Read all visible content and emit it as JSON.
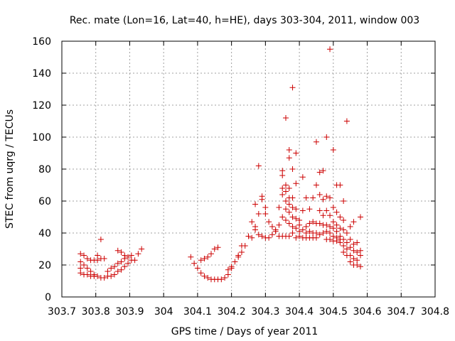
{
  "chart_data": {
    "type": "scatter",
    "title": "Rec. mate (Lon=16, Lat=40, h=HE), days 303-304, 2011, window 003",
    "xlabel": "GPS time / Days of year 2011",
    "ylabel": "STEC from uqrg / TECUs",
    "xlim": [
      303.7,
      304.8
    ],
    "ylim": [
      0,
      160
    ],
    "xticks": [
      "303.7",
      "303.8",
      "303.9",
      "304",
      "304.1",
      "304.2",
      "304.3",
      "304.4",
      "304.5",
      "304.6",
      "304.7",
      "304.8"
    ],
    "yticks": [
      "0",
      "20",
      "40",
      "60",
      "80",
      "100",
      "120",
      "140",
      "160"
    ],
    "grid": true,
    "marker": "+",
    "color": "#cc0000",
    "points": [
      [
        303.755,
        27
      ],
      [
        303.755,
        22
      ],
      [
        303.755,
        18
      ],
      [
        303.755,
        15
      ],
      [
        303.765,
        26
      ],
      [
        303.765,
        20
      ],
      [
        303.765,
        14
      ],
      [
        303.775,
        24
      ],
      [
        303.775,
        18
      ],
      [
        303.775,
        14
      ],
      [
        303.785,
        23
      ],
      [
        303.785,
        16
      ],
      [
        303.785,
        13
      ],
      [
        303.795,
        23
      ],
      [
        303.795,
        14
      ],
      [
        303.795,
        13
      ],
      [
        303.805,
        26
      ],
      [
        303.805,
        23
      ],
      [
        303.805,
        13
      ],
      [
        303.815,
        36
      ],
      [
        303.815,
        24
      ],
      [
        303.815,
        12
      ],
      [
        303.825,
        24
      ],
      [
        303.825,
        12
      ],
      [
        303.835,
        16
      ],
      [
        303.835,
        13
      ],
      [
        303.845,
        18
      ],
      [
        303.845,
        13
      ],
      [
        303.855,
        19
      ],
      [
        303.855,
        14
      ],
      [
        303.865,
        29
      ],
      [
        303.865,
        21
      ],
      [
        303.865,
        16
      ],
      [
        303.875,
        28
      ],
      [
        303.875,
        22
      ],
      [
        303.875,
        17
      ],
      [
        303.885,
        26
      ],
      [
        303.885,
        24
      ],
      [
        303.885,
        19
      ],
      [
        303.895,
        25
      ],
      [
        303.895,
        21
      ],
      [
        303.905,
        26
      ],
      [
        303.905,
        23
      ],
      [
        303.915,
        23
      ],
      [
        303.925,
        27
      ],
      [
        303.935,
        30
      ],
      [
        304.08,
        25
      ],
      [
        304.09,
        21
      ],
      [
        304.1,
        18
      ],
      [
        304.11,
        15
      ],
      [
        304.11,
        23
      ],
      [
        304.12,
        13
      ],
      [
        304.12,
        24
      ],
      [
        304.13,
        12
      ],
      [
        304.13,
        25
      ],
      [
        304.14,
        11
      ],
      [
        304.14,
        27
      ],
      [
        304.15,
        11
      ],
      [
        304.15,
        30
      ],
      [
        304.16,
        11
      ],
      [
        304.16,
        31
      ],
      [
        304.17,
        11
      ],
      [
        304.18,
        12
      ],
      [
        304.19,
        14
      ],
      [
        304.19,
        17
      ],
      [
        304.2,
        18
      ],
      [
        304.2,
        19
      ],
      [
        304.21,
        22
      ],
      [
        304.22,
        25
      ],
      [
        304.22,
        26
      ],
      [
        304.23,
        28
      ],
      [
        304.23,
        32
      ],
      [
        304.24,
        32
      ],
      [
        304.25,
        38
      ],
      [
        304.26,
        37
      ],
      [
        304.26,
        47
      ],
      [
        304.27,
        42
      ],
      [
        304.27,
        44
      ],
      [
        304.27,
        58
      ],
      [
        304.28,
        39
      ],
      [
        304.28,
        52
      ],
      [
        304.28,
        82
      ],
      [
        304.29,
        38
      ],
      [
        304.29,
        61
      ],
      [
        304.29,
        63
      ],
      [
        304.3,
        37
      ],
      [
        304.3,
        52
      ],
      [
        304.3,
        56
      ],
      [
        304.31,
        37
      ],
      [
        304.31,
        47
      ],
      [
        304.32,
        39
      ],
      [
        304.32,
        44
      ],
      [
        304.33,
        42
      ],
      [
        304.33,
        41
      ],
      [
        304.34,
        38
      ],
      [
        304.34,
        45
      ],
      [
        304.34,
        56
      ],
      [
        304.35,
        38
      ],
      [
        304.35,
        50
      ],
      [
        304.35,
        64
      ],
      [
        304.35,
        68
      ],
      [
        304.35,
        76
      ],
      [
        304.35,
        79
      ],
      [
        304.36,
        38
      ],
      [
        304.36,
        48
      ],
      [
        304.36,
        55
      ],
      [
        304.36,
        60
      ],
      [
        304.36,
        66
      ],
      [
        304.36,
        70
      ],
      [
        304.36,
        112
      ],
      [
        304.37,
        38
      ],
      [
        304.37,
        46
      ],
      [
        304.37,
        53
      ],
      [
        304.37,
        58
      ],
      [
        304.37,
        62
      ],
      [
        304.37,
        68
      ],
      [
        304.37,
        87
      ],
      [
        304.37,
        92
      ],
      [
        304.38,
        40
      ],
      [
        304.38,
        44
      ],
      [
        304.38,
        50
      ],
      [
        304.38,
        56
      ],
      [
        304.38,
        62
      ],
      [
        304.38,
        80
      ],
      [
        304.38,
        131
      ],
      [
        304.39,
        37
      ],
      [
        304.39,
        43
      ],
      [
        304.39,
        49
      ],
      [
        304.39,
        55
      ],
      [
        304.39,
        71
      ],
      [
        304.39,
        90
      ],
      [
        304.4,
        38
      ],
      [
        304.4,
        41
      ],
      [
        304.4,
        45
      ],
      [
        304.4,
        48
      ],
      [
        304.41,
        37
      ],
      [
        304.41,
        42
      ],
      [
        304.41,
        54
      ],
      [
        304.41,
        75
      ],
      [
        304.42,
        37
      ],
      [
        304.42,
        40
      ],
      [
        304.42,
        44
      ],
      [
        304.42,
        62
      ],
      [
        304.43,
        37
      ],
      [
        304.43,
        41
      ],
      [
        304.43,
        46
      ],
      [
        304.43,
        55
      ],
      [
        304.44,
        37
      ],
      [
        304.44,
        40
      ],
      [
        304.44,
        47
      ],
      [
        304.44,
        62
      ],
      [
        304.45,
        37
      ],
      [
        304.45,
        40
      ],
      [
        304.45,
        46
      ],
      [
        304.45,
        70
      ],
      [
        304.45,
        97
      ],
      [
        304.46,
        39
      ],
      [
        304.46,
        46
      ],
      [
        304.46,
        54
      ],
      [
        304.46,
        64
      ],
      [
        304.46,
        78
      ],
      [
        304.47,
        40
      ],
      [
        304.47,
        45
      ],
      [
        304.47,
        51
      ],
      [
        304.47,
        61
      ],
      [
        304.47,
        79
      ],
      [
        304.48,
        36
      ],
      [
        304.48,
        41
      ],
      [
        304.48,
        45
      ],
      [
        304.48,
        54
      ],
      [
        304.48,
        63
      ],
      [
        304.48,
        100
      ],
      [
        304.49,
        36
      ],
      [
        304.49,
        40
      ],
      [
        304.49,
        44
      ],
      [
        304.49,
        51
      ],
      [
        304.49,
        62
      ],
      [
        304.49,
        155
      ],
      [
        304.5,
        35
      ],
      [
        304.5,
        38
      ],
      [
        304.5,
        43
      ],
      [
        304.5,
        47
      ],
      [
        304.5,
        56
      ],
      [
        304.5,
        92
      ],
      [
        304.51,
        35
      ],
      [
        304.51,
        37
      ],
      [
        304.51,
        41
      ],
      [
        304.51,
        45
      ],
      [
        304.51,
        53
      ],
      [
        304.51,
        70
      ],
      [
        304.52,
        34
      ],
      [
        304.52,
        36
      ],
      [
        304.52,
        38
      ],
      [
        304.52,
        43
      ],
      [
        304.52,
        50
      ],
      [
        304.52,
        70
      ],
      [
        304.53,
        28
      ],
      [
        304.53,
        32
      ],
      [
        304.53,
        36
      ],
      [
        304.53,
        42
      ],
      [
        304.53,
        48
      ],
      [
        304.53,
        60
      ],
      [
        304.54,
        26
      ],
      [
        304.54,
        30
      ],
      [
        304.54,
        34
      ],
      [
        304.54,
        40
      ],
      [
        304.54,
        110
      ],
      [
        304.55,
        22
      ],
      [
        304.55,
        26
      ],
      [
        304.55,
        31
      ],
      [
        304.55,
        36
      ],
      [
        304.55,
        44
      ],
      [
        304.56,
        20
      ],
      [
        304.56,
        24
      ],
      [
        304.56,
        29
      ],
      [
        304.56,
        33
      ],
      [
        304.56,
        47
      ],
      [
        304.57,
        20
      ],
      [
        304.57,
        23
      ],
      [
        304.57,
        28
      ],
      [
        304.57,
        34
      ],
      [
        304.58,
        19
      ],
      [
        304.58,
        26
      ],
      [
        304.58,
        29
      ],
      [
        304.58,
        50
      ]
    ]
  }
}
